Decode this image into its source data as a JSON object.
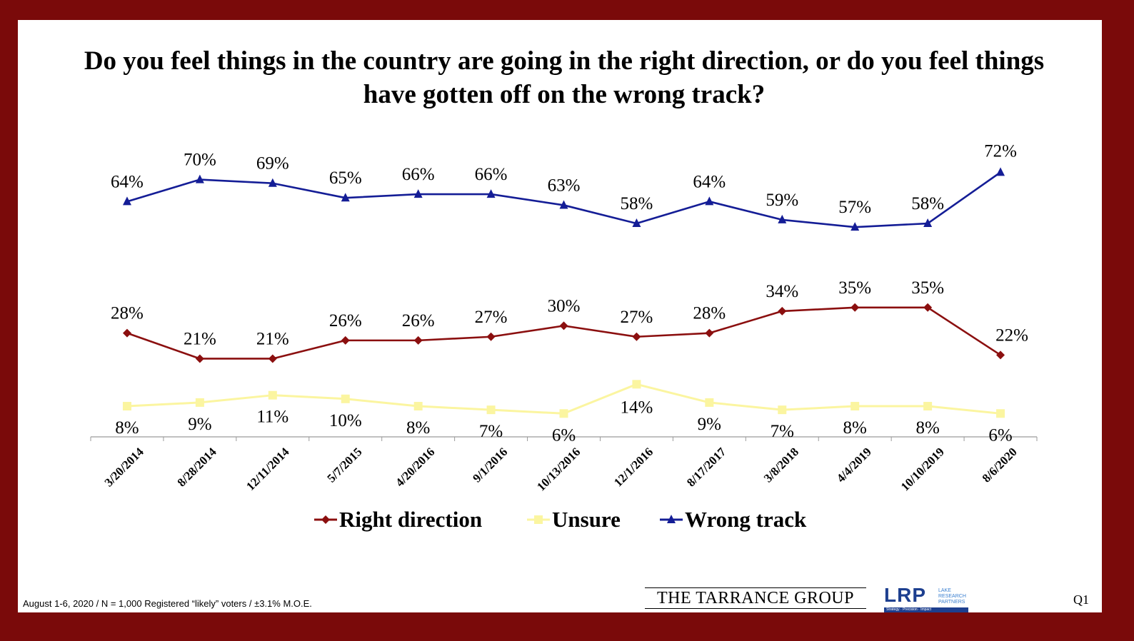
{
  "title": "Do you feel things in the country are going in the right direction, or do you feel things have gotten off on the wrong track?",
  "footer_note": "August 1-6, 2020 / N = 1,000 Registered “likely” voters / ±3.1% M.O.E.",
  "logos": {
    "tarrance": "THE TARRANCE GROUP",
    "lrp_letters": "LRP",
    "lrp_sub": "LAKE RESEARCH PARTNERS",
    "lrp_tagline": "Strategy · Precision · Impact"
  },
  "question_number": "Q1",
  "colors": {
    "right_direction": "#8b0f0f",
    "unsure": "#fbf5a0",
    "wrong_track": "#141d96",
    "border": "#7a0a0a"
  },
  "chart_data": {
    "type": "line",
    "title": "Do you feel things in the country are going in the right direction, or do you feel things have gotten off on the wrong track?",
    "xlabel": "",
    "ylabel": "",
    "categories": [
      "3/20/2014",
      "8/28/2014",
      "12/11/2014",
      "5/7/2015",
      "4/20/2016",
      "9/1/2016",
      "10/13/2016",
      "12/1/2016",
      "8/17/2017",
      "3/8/2018",
      "4/4/2019",
      "10/10/2019",
      "8/6/2020"
    ],
    "series": [
      {
        "name": "Right direction",
        "marker": "diamond",
        "color": "#8b0f0f",
        "values": [
          28,
          21,
          21,
          26,
          26,
          27,
          30,
          27,
          28,
          34,
          35,
          35,
          22
        ]
      },
      {
        "name": "Unsure",
        "marker": "square",
        "color": "#fbf5a0",
        "values": [
          8,
          9,
          11,
          10,
          8,
          7,
          6,
          14,
          9,
          7,
          8,
          8,
          6
        ]
      },
      {
        "name": "Wrong track",
        "marker": "triangle",
        "color": "#141d96",
        "values": [
          64,
          70,
          69,
          65,
          66,
          66,
          63,
          58,
          64,
          59,
          57,
          58,
          72
        ]
      }
    ],
    "value_suffix": "%",
    "ylim": [
      0,
      80
    ],
    "grid": false,
    "legend_position": "bottom"
  }
}
